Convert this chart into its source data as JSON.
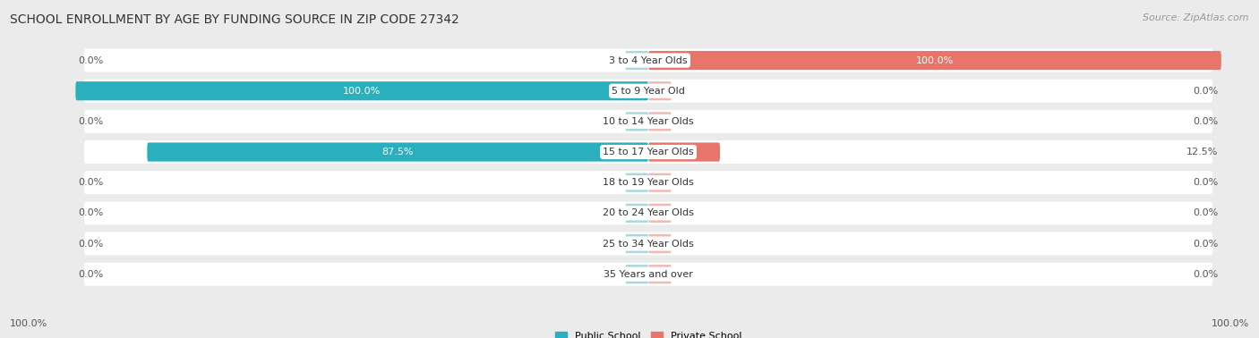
{
  "title": "SCHOOL ENROLLMENT BY AGE BY FUNDING SOURCE IN ZIP CODE 27342",
  "source": "Source: ZipAtlas.com",
  "categories": [
    "3 to 4 Year Olds",
    "5 to 9 Year Old",
    "10 to 14 Year Olds",
    "15 to 17 Year Olds",
    "18 to 19 Year Olds",
    "20 to 24 Year Olds",
    "25 to 34 Year Olds",
    "35 Years and over"
  ],
  "public_values": [
    0.0,
    100.0,
    0.0,
    87.5,
    0.0,
    0.0,
    0.0,
    0.0
  ],
  "private_values": [
    100.0,
    0.0,
    0.0,
    12.5,
    0.0,
    0.0,
    0.0,
    0.0
  ],
  "public_color_active": "#2ab0bc",
  "public_color_inactive": "#a8d8dc",
  "private_color_active": "#e8756a",
  "private_color_inactive": "#f0b8b2",
  "bg_color": "#ebebeb",
  "bar_bg_color": "#ffffff",
  "title_fontsize": 10,
  "label_fontsize": 8,
  "source_fontsize": 8,
  "bar_height": 0.62,
  "xlim": 100,
  "legend_labels": [
    "Public School",
    "Private School"
  ],
  "bottom_left_label": "100.0%",
  "bottom_right_label": "100.0%"
}
